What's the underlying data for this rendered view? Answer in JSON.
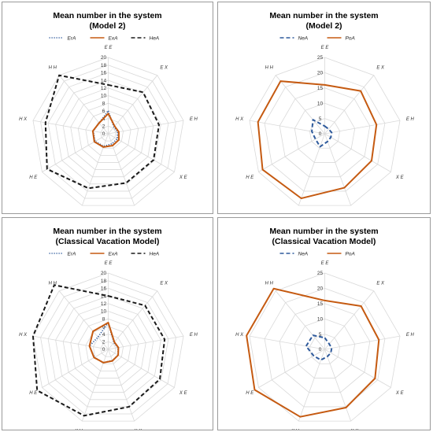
{
  "axes": [
    "E E",
    "E X",
    "E H",
    "X E",
    "X X",
    "X H",
    "H E",
    "H X",
    "H H"
  ],
  "colors": {
    "ErA": "#2e5a9c",
    "ExA": "#c55a11",
    "HeA": "#1a1a1a",
    "NeA": "#2e5a9c",
    "PoA": "#c55a11",
    "grid": "#d9d9d9"
  },
  "chart_data": [
    {
      "type": "radar",
      "title": "Mean number in the system",
      "subtitle": "(Model 2)",
      "ticks": [
        0,
        2,
        4,
        6,
        8,
        10,
        12,
        14,
        16,
        18,
        20
      ],
      "rmax": 20,
      "legend": "top",
      "series": [
        {
          "name": "ErA",
          "style": "dotted",
          "values": [
            6,
            2.3,
            2.5,
            2.7,
            2.8,
            3.5,
            4,
            4,
            3.7
          ]
        },
        {
          "name": "ExA",
          "style": "solid",
          "values": [
            5.3,
            2.6,
            2.8,
            3.2,
            3.3,
            3.7,
            4.2,
            4.1,
            3.7
          ]
        },
        {
          "name": "HeA",
          "style": "dashed",
          "values": [
            12.8,
            14.2,
            13.5,
            13.7,
            13.7,
            15.2,
            18.5,
            16.7,
            20
          ]
        }
      ]
    },
    {
      "type": "radar",
      "title": "Mean number in the system",
      "subtitle": "(Model 2)",
      "ticks": [
        0,
        5,
        10,
        15,
        20,
        25
      ],
      "rmax": 25,
      "legend": "top",
      "series": [
        {
          "name": "NeA",
          "style": "dashed",
          "values": [
            2.5,
            2,
            2.3,
            2.3,
            2.7,
            4.5,
            3.5,
            4.3,
            6
          ]
        },
        {
          "name": "PoA",
          "style": "solid",
          "values": [
            16,
            18.3,
            17.2,
            17.7,
            18.8,
            22.5,
            23.5,
            22.2,
            22.5
          ]
        }
      ]
    },
    {
      "type": "radar",
      "title": "Mean number in the system",
      "subtitle": "(Classical Vacation Model)",
      "ticks": [
        0,
        2,
        4,
        6,
        8,
        10,
        12,
        14,
        16,
        18,
        20
      ],
      "rmax": 20,
      "legend": "top",
      "series": [
        {
          "name": "ErA",
          "style": "dotted",
          "values": [
            7,
            2.3,
            2.6,
            3,
            3.1,
            3.7,
            4.2,
            5,
            4.2
          ]
        },
        {
          "name": "ExA",
          "style": "solid",
          "values": [
            7,
            2.5,
            2.7,
            3,
            3.2,
            3.7,
            4.3,
            5,
            6.2
          ]
        },
        {
          "name": "HeA",
          "style": "dashed",
          "values": [
            14,
            15,
            15,
            15.6,
            16,
            18.5,
            21.5,
            20,
            22
          ]
        }
      ]
    },
    {
      "type": "radar",
      "title": "Mean number in the system",
      "subtitle": "(Classical Vacation Model)",
      "ticks": [
        0,
        5,
        10,
        15,
        20,
        25
      ],
      "rmax": 25,
      "legend": "top",
      "series": [
        {
          "name": "NeA",
          "style": "dashed",
          "values": [
            3.8,
            2.3,
            2.3,
            2.3,
            2.5,
            3.7,
            4.2,
            6.2,
            6
          ]
        },
        {
          "name": "PoA",
          "style": "solid",
          "values": [
            16,
            18.5,
            18,
            19,
            20.3,
            23.5,
            26.5,
            26,
            26
          ]
        }
      ]
    }
  ]
}
